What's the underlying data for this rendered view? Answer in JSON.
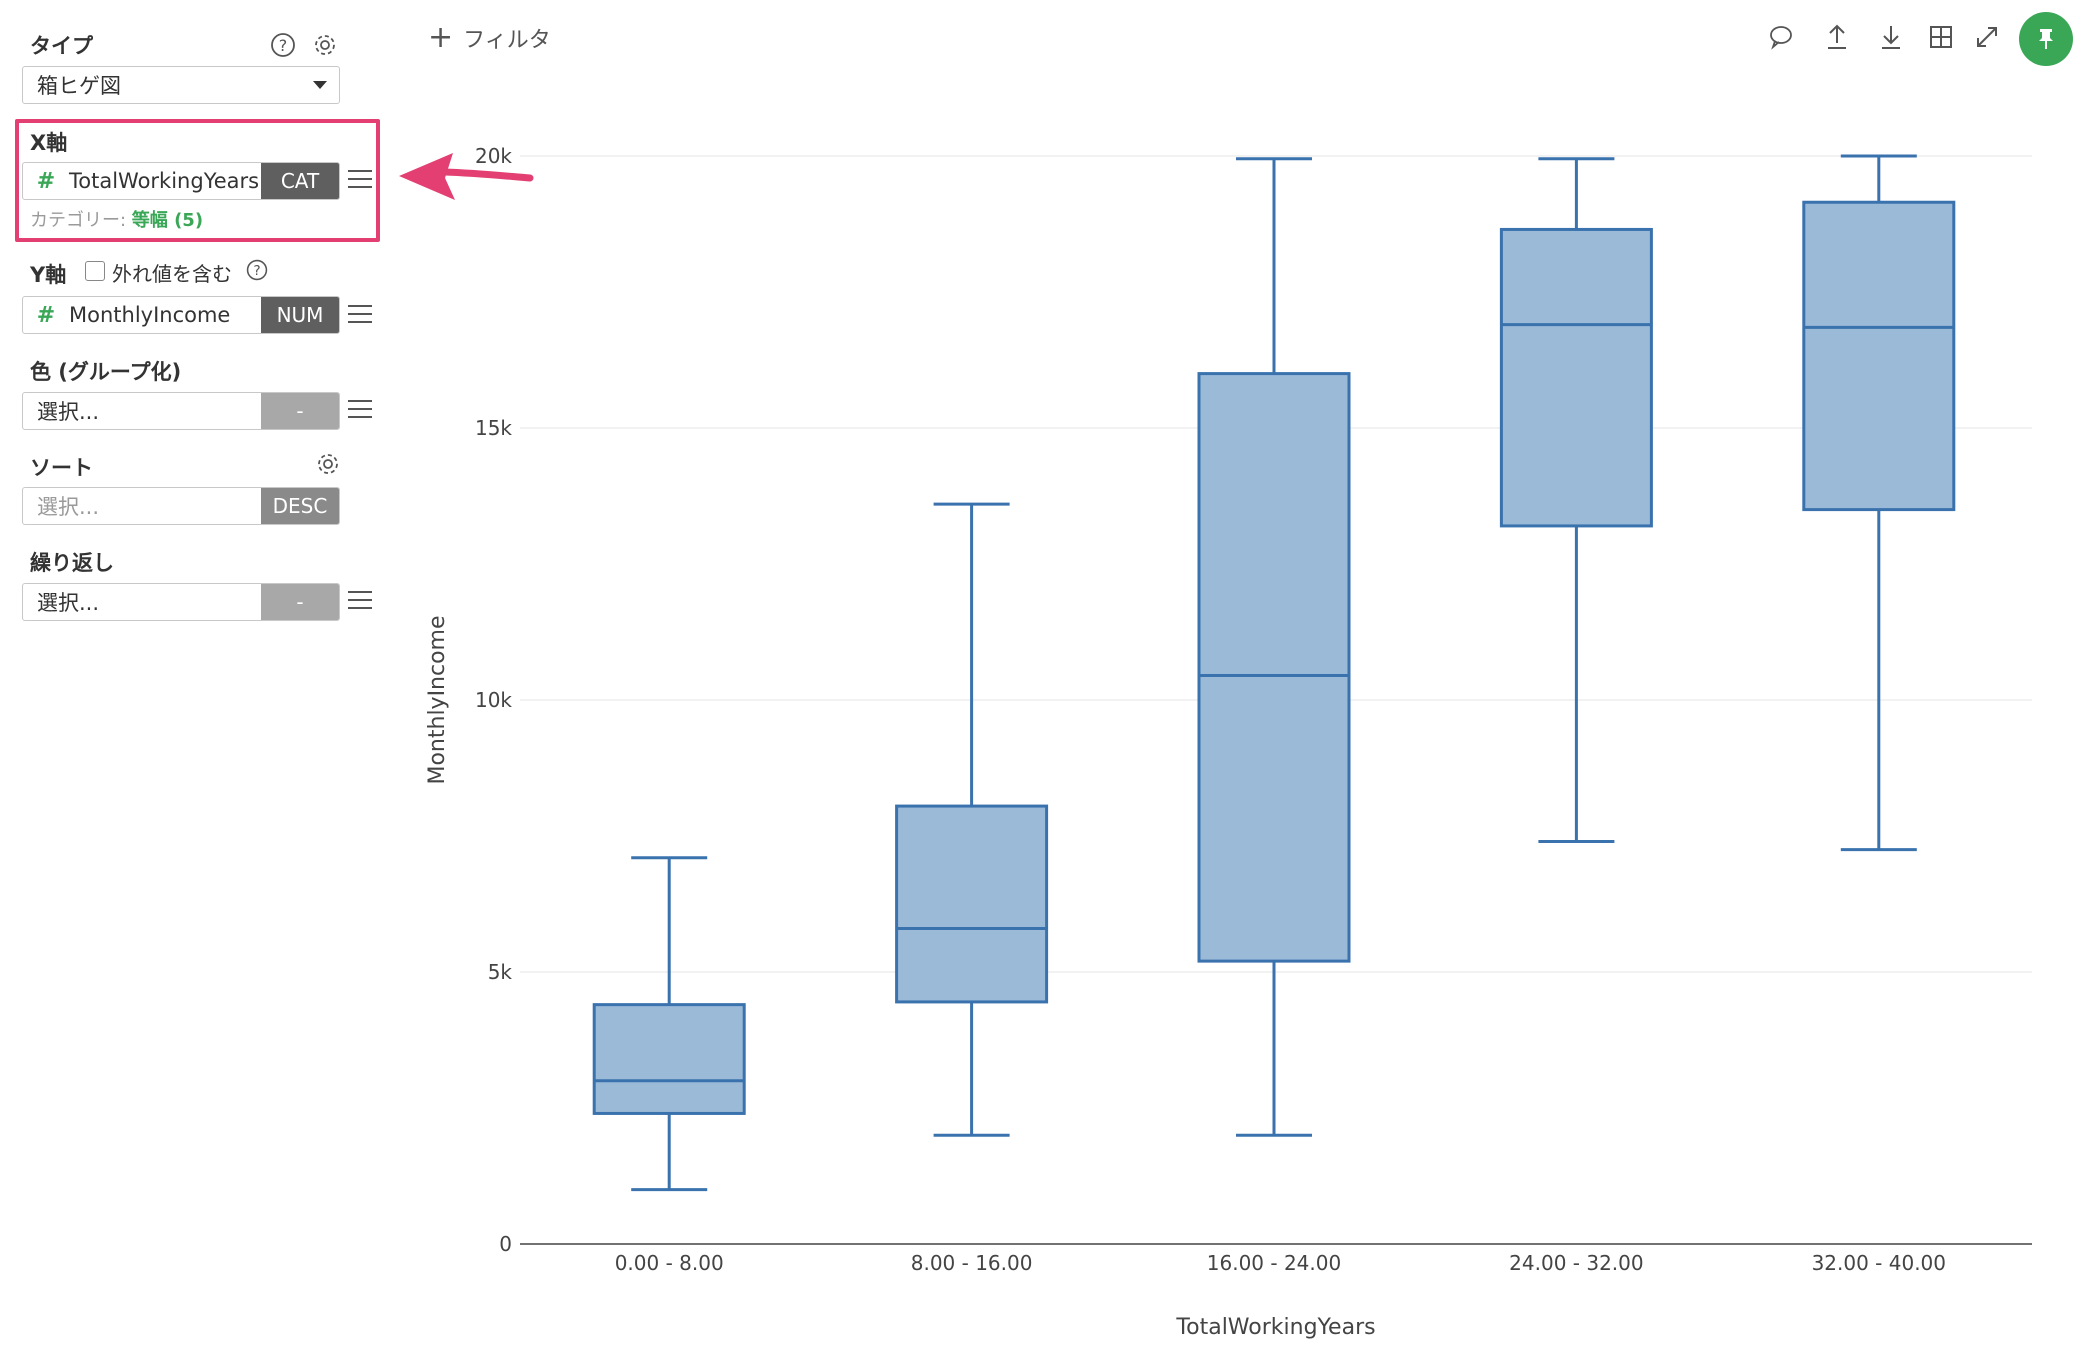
{
  "panel": {
    "type": {
      "label": "タイプ",
      "value": "箱ヒゲ図"
    },
    "x_axis": {
      "label": "X軸",
      "field": "TotalWorkingYears",
      "tag": "CAT",
      "category_prefix": "カテゴリー: ",
      "category_value": "等幅 (5)"
    },
    "y_axis": {
      "label": "Y軸",
      "outlier_label": "外れ値を含む",
      "field": "MonthlyIncome",
      "tag": "NUM"
    },
    "color": {
      "label": "色 (グループ化)",
      "placeholder": "選択...",
      "tag": "-"
    },
    "sort": {
      "label": "ソート",
      "placeholder": "選択...",
      "tag": "DESC"
    },
    "repeat": {
      "label": "繰り返し",
      "placeholder": "選択...",
      "tag": "-"
    }
  },
  "toolbar": {
    "filter_label": "フィルタ",
    "icons": [
      "comment-icon",
      "upload-icon",
      "download-icon",
      "table-icon",
      "expand-icon",
      "pin-icon"
    ]
  },
  "colors": {
    "box_fill": "#9bbad8",
    "box_stroke": "#3a72ad",
    "highlight": "#e33f73",
    "accent_green": "#3aa757"
  },
  "chart_data": {
    "type": "box",
    "xlabel": "TotalWorkingYears",
    "ylabel": "MonthlyIncome",
    "ylim": [
      0,
      20000
    ],
    "yticks": [
      0,
      5000,
      10000,
      15000,
      20000
    ],
    "ytick_labels": [
      "0",
      "5k",
      "10k",
      "15k",
      "20k"
    ],
    "grid": true,
    "categories": [
      "0.00 - 8.00",
      "8.00 - 16.00",
      "16.00 - 24.00",
      "24.00 - 32.00",
      "32.00 - 40.00"
    ],
    "boxes": [
      {
        "min": 1000,
        "q1": 2400,
        "median": 3000,
        "q3": 4400,
        "max": 7100
      },
      {
        "min": 2000,
        "q1": 4450,
        "median": 5800,
        "q3": 8050,
        "max": 13600
      },
      {
        "min": 2000,
        "q1": 5200,
        "median": 10450,
        "q3": 16000,
        "max": 19950
      },
      {
        "min": 7400,
        "q1": 13200,
        "median": 16900,
        "q3": 18650,
        "max": 19950
      },
      {
        "min": 7250,
        "q1": 13500,
        "median": 16850,
        "q3": 19150,
        "max": 20000
      }
    ]
  }
}
